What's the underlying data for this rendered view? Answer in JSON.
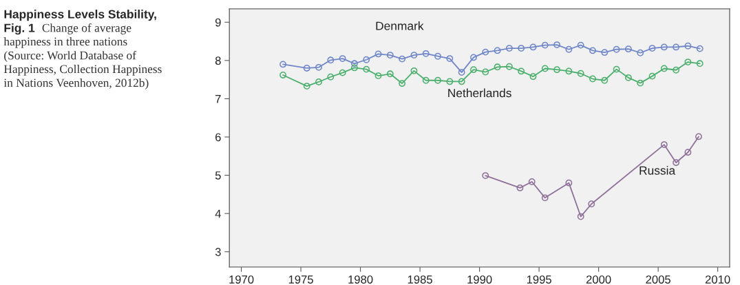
{
  "chart_data": {
    "type": "line",
    "title": "Happiness Levels Stability, Fig. 1",
    "subtitle": "Change of average happiness in three nations (Source: World Database of Happiness, Collection Happiness in Nations Veenhoven, 2012b)",
    "series": [
      {
        "name": "Denmark",
        "color": "#6f86c8",
        "x": [
          1973.5,
          1975.5,
          1976.5,
          1977.5,
          1978.5,
          1979.5,
          1980.5,
          1981.5,
          1982.5,
          1983.5,
          1984.5,
          1985.5,
          1986.5,
          1987.5,
          1988.5,
          1989.5,
          1990.5,
          1991.5,
          1992.5,
          1993.5,
          1994.5,
          1995.5,
          1996.5,
          1997.5,
          1998.5,
          1999.5,
          2000.5,
          2001.5,
          2002.5,
          2003.5,
          2004.5,
          2005.5,
          2006.5,
          2007.5,
          2008.5
        ],
        "values": [
          7.9,
          7.8,
          7.82,
          8.01,
          8.05,
          7.92,
          8.02,
          8.17,
          8.14,
          8.04,
          8.14,
          8.18,
          8.11,
          8.05,
          7.69,
          8.08,
          8.22,
          8.26,
          8.32,
          8.32,
          8.35,
          8.4,
          8.41,
          8.29,
          8.4,
          8.26,
          8.21,
          8.29,
          8.3,
          8.2,
          8.32,
          8.35,
          8.35,
          8.38,
          8.31
        ]
      },
      {
        "name": "Netherlands",
        "color": "#4caf6e",
        "x": [
          1973.5,
          1975.5,
          1976.5,
          1977.5,
          1978.5,
          1979.5,
          1980.5,
          1981.5,
          1982.5,
          1983.5,
          1984.5,
          1985.5,
          1986.5,
          1987.5,
          1988.5,
          1989.5,
          1990.5,
          1991.5,
          1992.5,
          1993.5,
          1994.5,
          1995.5,
          1996.5,
          1997.5,
          1998.5,
          1999.5,
          2000.5,
          2001.5,
          2002.5,
          2003.5,
          2004.5,
          2005.5,
          2006.5,
          2007.5,
          2008.5
        ],
        "values": [
          7.62,
          7.33,
          7.44,
          7.57,
          7.68,
          7.81,
          7.77,
          7.6,
          7.65,
          7.4,
          7.73,
          7.48,
          7.48,
          7.45,
          7.45,
          7.76,
          7.7,
          7.83,
          7.84,
          7.72,
          7.58,
          7.79,
          7.76,
          7.72,
          7.66,
          7.52,
          7.48,
          7.77,
          7.55,
          7.41,
          7.59,
          7.79,
          7.75,
          7.96,
          7.92
        ]
      },
      {
        "name": "Russia",
        "color": "#8e7099",
        "x": [
          1990.5,
          1993.4,
          1994.4,
          1995.5,
          1997.5,
          1998.5,
          1999.4,
          2005.5,
          2006.5,
          2007.5,
          2008.4
        ],
        "values": [
          4.99,
          4.67,
          4.83,
          4.41,
          4.8,
          3.92,
          4.25,
          5.8,
          5.33,
          5.6,
          6.01
        ]
      }
    ],
    "xlim": [
      1969,
      2011
    ],
    "xticks": [
      1970,
      1975,
      1980,
      1985,
      1990,
      1995,
      2000,
      2005,
      2010
    ],
    "ylim": [
      2.6,
      9.35
    ],
    "yticks": [
      3,
      4,
      5,
      6,
      7,
      8,
      9
    ],
    "marker": "circle",
    "line_style": "solid",
    "grid": false,
    "legend": false
  }
}
